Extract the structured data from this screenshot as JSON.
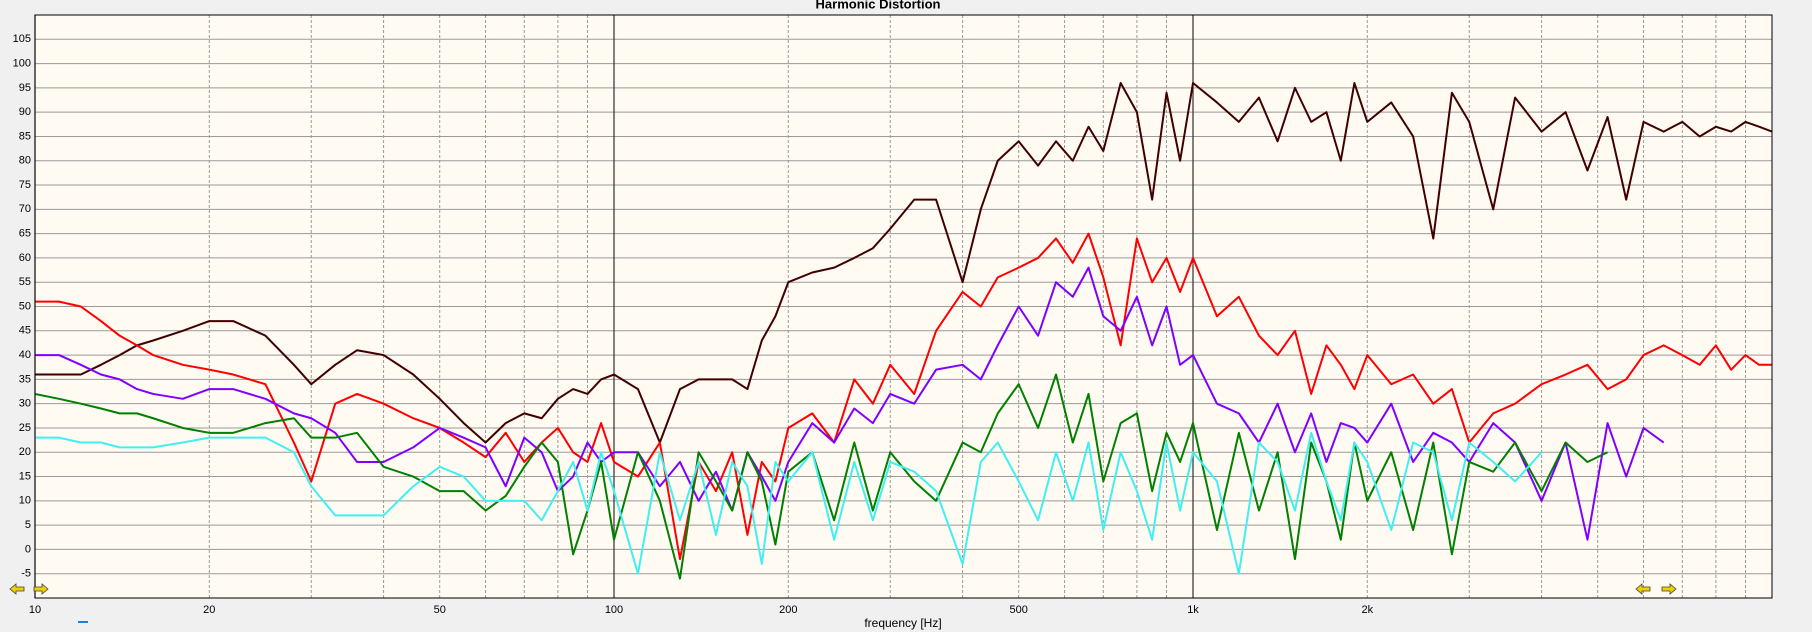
{
  "chart_data": {
    "type": "line",
    "title": "Harmonic Distortion",
    "x_label": "frequency [Hz]",
    "log_x": true,
    "grid": true,
    "xlim": [
      10,
      10000
    ],
    "ylim": [
      -10,
      110
    ],
    "xticks": [
      10,
      20,
      50,
      100,
      200,
      500,
      {
        "value": 1000,
        "label": "1k"
      },
      {
        "value": 2000,
        "label": "2k"
      }
    ],
    "xminor": [
      30,
      40,
      60,
      70,
      80,
      90,
      300,
      400,
      600,
      700,
      800,
      900,
      3000,
      4000,
      5000,
      6000,
      7000,
      8000,
      9000
    ],
    "yticks": [
      -5,
      0,
      5,
      10,
      15,
      20,
      25,
      30,
      35,
      40,
      45,
      50,
      55,
      60,
      65,
      70,
      75,
      80,
      85,
      90,
      95,
      100,
      105
    ],
    "x": [
      10,
      11,
      12,
      13,
      14,
      15,
      16,
      18,
      20,
      22,
      25,
      28,
      30,
      33,
      36,
      40,
      45,
      50,
      55,
      60,
      65,
      70,
      75,
      80,
      85,
      90,
      95,
      100,
      110,
      120,
      130,
      140,
      150,
      160,
      170,
      180,
      190,
      200,
      220,
      240,
      260,
      280,
      300,
      330,
      360,
      400,
      430,
      460,
      500,
      540,
      580,
      620,
      660,
      700,
      750,
      800,
      850,
      900,
      950,
      1000,
      1100,
      1200,
      1300,
      1400,
      1500,
      1600,
      1700,
      1800,
      1900,
      2000,
      2200,
      2400,
      2600,
      2800,
      3000,
      3300,
      3600,
      4000,
      4400,
      4800,
      5200,
      5600,
      6000,
      6500,
      7000,
      7500,
      8000,
      8500,
      9000,
      9500,
      10000
    ],
    "series": [
      {
        "color": "#400000",
        "values": [
          36,
          36,
          36,
          38,
          40,
          42,
          43,
          45,
          47,
          47,
          44,
          38,
          34,
          38,
          41,
          40,
          36,
          31,
          26,
          22,
          26,
          28,
          27,
          31,
          33,
          32,
          35,
          36,
          33,
          22,
          33,
          35,
          35,
          35,
          33,
          43,
          48,
          55,
          57,
          58,
          60,
          62,
          66,
          72,
          72,
          55,
          70,
          80,
          84,
          79,
          84,
          80,
          87,
          82,
          96,
          90,
          72,
          94,
          80,
          96,
          92,
          88,
          93,
          84,
          95,
          88,
          90,
          80,
          96,
          88,
          92,
          85,
          64,
          94,
          88,
          70,
          93,
          86,
          90,
          78,
          89,
          72,
          88,
          86,
          88,
          85,
          87,
          86,
          88,
          87,
          86
        ]
      },
      {
        "color": "#ff0000",
        "values": [
          51,
          51,
          50,
          47,
          44,
          42,
          40,
          38,
          37,
          36,
          34,
          22,
          14,
          30,
          32,
          30,
          27,
          25,
          22,
          19,
          24,
          18,
          22,
          25,
          20,
          18,
          26,
          18,
          15,
          22,
          -2,
          18,
          12,
          20,
          3,
          18,
          14,
          25,
          28,
          22,
          35,
          30,
          38,
          32,
          45,
          53,
          50,
          56,
          58,
          60,
          64,
          59,
          65,
          56,
          42,
          64,
          55,
          60,
          53,
          60,
          48,
          52,
          44,
          40,
          45,
          32,
          42,
          38,
          33,
          40,
          34,
          36,
          30,
          33,
          22,
          28,
          30,
          34,
          36,
          38,
          33,
          35,
          40,
          42,
          40,
          38,
          42,
          37,
          40,
          38,
          38
        ]
      },
      {
        "color": "#8000ff",
        "values": [
          40,
          40,
          38,
          36,
          35,
          33,
          32,
          31,
          33,
          33,
          31,
          28,
          27,
          24,
          18,
          18,
          21,
          25,
          23,
          21,
          13,
          23,
          20,
          12,
          15,
          22,
          18,
          20,
          20,
          13,
          18,
          10,
          16,
          8,
          20,
          15,
          10,
          18,
          26,
          22,
          29,
          26,
          32,
          30,
          37,
          38,
          35,
          42,
          50,
          44,
          55,
          52,
          58,
          48,
          45,
          52,
          42,
          50,
          38,
          40,
          30,
          28,
          22,
          30,
          20,
          28,
          18,
          26,
          25,
          22,
          30,
          18,
          24,
          22,
          18,
          26,
          22,
          10,
          22,
          2,
          26,
          15,
          25,
          22,
          null,
          null,
          null,
          null,
          null,
          null,
          null
        ]
      },
      {
        "color": "#008000",
        "values": [
          32,
          31,
          30,
          29,
          28,
          28,
          27,
          25,
          24,
          24,
          26,
          27,
          23,
          23,
          24,
          17,
          15,
          12,
          12,
          8,
          11,
          17,
          22,
          18,
          -1,
          8,
          18,
          2,
          20,
          10,
          -6,
          20,
          14,
          8,
          20,
          14,
          1,
          16,
          20,
          6,
          22,
          8,
          20,
          14,
          10,
          22,
          20,
          28,
          34,
          25,
          36,
          22,
          32,
          14,
          26,
          28,
          12,
          24,
          18,
          26,
          4,
          24,
          8,
          20,
          -2,
          22,
          14,
          2,
          22,
          10,
          20,
          4,
          22,
          -1,
          18,
          16,
          22,
          12,
          22,
          18,
          20,
          null,
          null,
          null,
          null,
          null,
          null,
          null,
          null,
          null,
          null
        ]
      },
      {
        "color": "#40f0f0",
        "values": [
          23,
          23,
          22,
          22,
          21,
          21,
          21,
          22,
          23,
          23,
          23,
          20,
          13,
          7,
          7,
          7,
          13,
          17,
          15,
          10,
          10,
          10,
          6,
          12,
          18,
          8,
          20,
          12,
          -5,
          20,
          6,
          18,
          3,
          18,
          13,
          -3,
          18,
          14,
          20,
          2,
          18,
          6,
          18,
          16,
          12,
          -3,
          18,
          22,
          14,
          6,
          20,
          10,
          22,
          4,
          20,
          12,
          2,
          22,
          8,
          20,
          14,
          -5,
          22,
          18,
          8,
          24,
          14,
          6,
          22,
          18,
          4,
          22,
          20,
          6,
          22,
          18,
          14,
          20,
          null,
          null,
          null,
          null,
          null,
          null,
          null,
          null,
          null,
          null,
          null,
          null,
          null
        ]
      }
    ]
  }
}
